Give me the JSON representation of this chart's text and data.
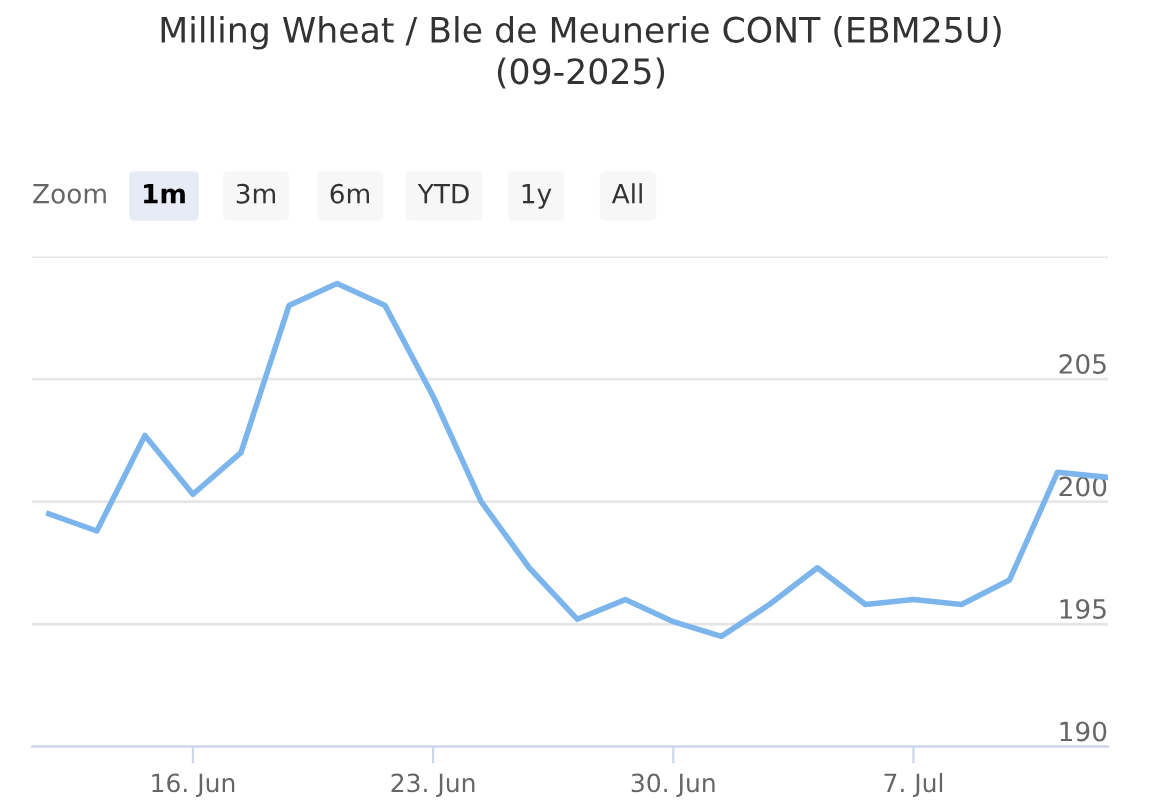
{
  "chart_data": {
    "type": "line",
    "title": "Milling Wheat / Ble de Meunerie CONT (EBM25U)\n(09-2025)",
    "annotations": [
      "Zoom",
      "1m",
      "3m",
      "6m",
      "YTD",
      "1y",
      "All"
    ],
    "categories": [
      null,
      null,
      null,
      "16. Jun",
      null,
      null,
      null,
      null,
      "23. Jun",
      null,
      null,
      null,
      null,
      "30. Jun",
      null,
      null,
      null,
      null,
      "7. Jul",
      null,
      null,
      null,
      null
    ],
    "series": [
      {
        "color": "#7cb5ec",
        "values": [
          199.5,
          198.8,
          202.7,
          200.3,
          202.0,
          208.0,
          208.9,
          208.0,
          204.3,
          200.0,
          197.3,
          195.2,
          196.0,
          195.1,
          194.5,
          195.8,
          197.3,
          195.8,
          196.0,
          195.8,
          196.8,
          201.2,
          201.0
        ]
      }
    ],
    "ylim": [
      190,
      210
    ],
    "yticks": [
      190,
      195,
      200,
      205,
      {
        "value": 210,
        "label": null
      }
    ],
    "grid": "y",
    "legend": false,
    "marker": "none",
    "line_style": "solid"
  }
}
